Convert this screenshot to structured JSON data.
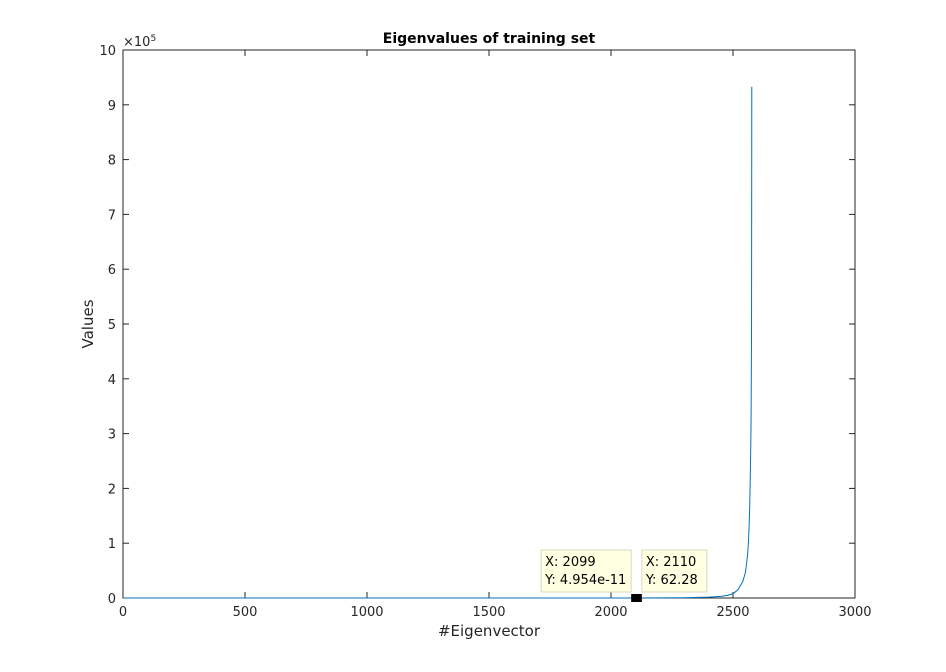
{
  "chart_data": {
    "type": "line",
    "title": "Eigenvalues of training set",
    "xlabel": "#Eigenvector",
    "ylabel": "Values",
    "xlim": [
      0,
      3000
    ],
    "ylim": [
      0,
      1000000
    ],
    "y_exponent_label": "×10",
    "y_exponent_power": "5",
    "x_ticks": [
      0,
      500,
      1000,
      1500,
      2000,
      2500,
      3000
    ],
    "x_tick_labels": [
      "0",
      "500",
      "1000",
      "1500",
      "2000",
      "2500",
      "3000"
    ],
    "y_ticks": [
      0,
      100000,
      200000,
      300000,
      400000,
      500000,
      600000,
      700000,
      800000,
      900000,
      1000000
    ],
    "y_tick_labels": [
      "0",
      "1",
      "2",
      "3",
      "4",
      "5",
      "6",
      "7",
      "8",
      "9",
      "10"
    ],
    "grid": false,
    "series": [
      {
        "color": "#0072bd",
        "x": [
          1,
          500,
          1000,
          1500,
          2000,
          2099,
          2110,
          2200,
          2300,
          2400,
          2450,
          2480,
          2500,
          2520,
          2540,
          2550,
          2555,
          2560,
          2563,
          2566,
          2568,
          2570,
          2572,
          2574,
          2575,
          2576,
          2576.5,
          2577
        ],
        "y": [
          0,
          0,
          0,
          0,
          0,
          0,
          62.28,
          200,
          500,
          1500,
          3000,
          5000,
          8000,
          15000,
          30000,
          45000,
          60000,
          80000,
          100000,
          130000,
          160000,
          200000,
          250000,
          320000,
          400000,
          500000,
          700000,
          933000
        ]
      }
    ],
    "datatips": [
      {
        "x_text": "X: 2099",
        "y_text": "Y: 4.954e-11",
        "x": 2099,
        "y": 0
      },
      {
        "x_text": "X: 2110",
        "y_text": "Y: 62.28",
        "x": 2110,
        "y": 62.28
      }
    ]
  }
}
